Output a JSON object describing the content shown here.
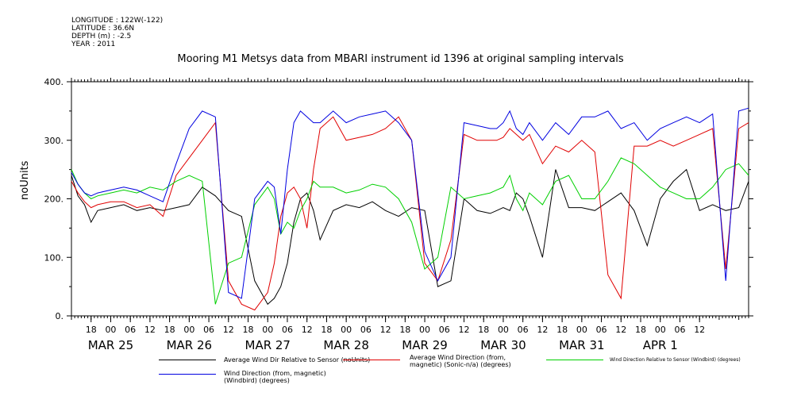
{
  "meta": {
    "longitude": "LONGITUDE : 122W(-122)",
    "latitude": "LATITUDE : 36.6N",
    "depth": "DEPTH (m) : -2.5",
    "year": "YEAR : 2011"
  },
  "chart_data": {
    "type": "line",
    "title": "Mooring M1 Metsys data from MBARI instrument id 1396 at original sampling intervals",
    "ylabel": "noUnits",
    "xlabel": "",
    "ylim": [
      0,
      400
    ],
    "xlim_hours": [
      0,
      207
    ],
    "y_ticks": [
      "0.",
      "100.",
      "200.",
      "300.",
      "400."
    ],
    "x_hour_ticks": [
      "18",
      "00",
      "06",
      "12",
      "18",
      "00",
      "06",
      "12",
      "18",
      "00",
      "06",
      "12",
      "18",
      "00",
      "06",
      "12",
      "18",
      "00",
      "06",
      "12",
      "18",
      "00",
      "06",
      "12",
      "18",
      "00",
      "06",
      "12",
      "18",
      "00",
      "06",
      "12"
    ],
    "x_date_labels": [
      "MAR 25",
      "MAR 26",
      "MAR 27",
      "MAR 28",
      "MAR 29",
      "MAR 30",
      "MAR 31",
      "APR  1"
    ],
    "grid": false,
    "series": [
      {
        "name": "Average Wind Dir Relative to Sensor (noUnits)",
        "color": "#000000",
        "x": [
          0,
          2,
          4,
          6,
          8,
          12,
          16,
          20,
          24,
          28,
          32,
          36,
          40,
          44,
          48,
          52,
          56,
          60,
          62,
          64,
          66,
          68,
          70,
          72,
          74,
          76,
          80,
          84,
          88,
          92,
          96,
          100,
          104,
          108,
          112,
          116,
          120,
          124,
          128,
          130,
          132,
          134,
          136,
          138,
          140,
          144,
          148,
          152,
          156,
          160,
          164,
          168,
          172,
          176,
          180,
          184,
          188,
          192,
          196,
          200,
          204,
          207
        ],
        "y": [
          240,
          205,
          190,
          160,
          180,
          185,
          190,
          180,
          185,
          180,
          185,
          190,
          220,
          205,
          180,
          170,
          60,
          20,
          30,
          50,
          90,
          160,
          200,
          210,
          180,
          130,
          180,
          190,
          185,
          195,
          180,
          170,
          185,
          180,
          50,
          60,
          200,
          180,
          175,
          180,
          185,
          180,
          210,
          200,
          170,
          100,
          250,
          185,
          185,
          180,
          195,
          210,
          180,
          120,
          200,
          230,
          250,
          180,
          190,
          180,
          185,
          230
        ]
      },
      {
        "name": "Average Wind Direction (from, magnetic) (Sonic-n/a) (degrees)",
        "color": "#e00000",
        "x": [
          0,
          2,
          4,
          6,
          8,
          12,
          16,
          20,
          24,
          28,
          32,
          36,
          40,
          44,
          48,
          52,
          56,
          60,
          62,
          64,
          66,
          68,
          70,
          72,
          74,
          76,
          80,
          84,
          88,
          92,
          96,
          100,
          104,
          108,
          112,
          116,
          120,
          124,
          128,
          130,
          132,
          134,
          136,
          138,
          140,
          144,
          148,
          152,
          156,
          160,
          164,
          168,
          172,
          176,
          180,
          184,
          188,
          192,
          196,
          200,
          204,
          207
        ],
        "y": [
          230,
          210,
          195,
          185,
          190,
          195,
          195,
          185,
          190,
          170,
          240,
          270,
          300,
          330,
          60,
          20,
          10,
          40,
          90,
          170,
          210,
          220,
          200,
          150,
          250,
          320,
          340,
          300,
          305,
          310,
          320,
          340,
          300,
          90,
          60,
          130,
          310,
          300,
          300,
          300,
          305,
          320,
          310,
          300,
          310,
          260,
          290,
          280,
          300,
          280,
          70,
          30,
          290,
          290,
          300,
          290,
          300,
          310,
          320,
          80,
          320,
          330
        ]
      },
      {
        "name": "Wind Direction Relative to Sensor (Windbird) (degrees)",
        "color": "#00d000",
        "x": [
          0,
          2,
          4,
          6,
          8,
          12,
          16,
          20,
          24,
          28,
          32,
          36,
          40,
          44,
          48,
          52,
          56,
          60,
          62,
          64,
          66,
          68,
          70,
          72,
          74,
          76,
          80,
          84,
          88,
          92,
          96,
          100,
          104,
          108,
          112,
          116,
          120,
          124,
          128,
          130,
          132,
          134,
          136,
          138,
          140,
          144,
          148,
          152,
          156,
          160,
          164,
          168,
          172,
          176,
          180,
          184,
          188,
          192,
          196,
          200,
          204,
          207
        ],
        "y": [
          250,
          225,
          210,
          200,
          205,
          210,
          215,
          210,
          220,
          215,
          230,
          240,
          230,
          20,
          90,
          100,
          190,
          220,
          200,
          140,
          160,
          150,
          180,
          200,
          230,
          220,
          220,
          210,
          215,
          225,
          220,
          200,
          160,
          80,
          100,
          220,
          200,
          205,
          210,
          215,
          220,
          240,
          200,
          180,
          210,
          190,
          230,
          240,
          200,
          200,
          230,
          270,
          260,
          240,
          220,
          210,
          200,
          200,
          220,
          250,
          260,
          240
        ]
      },
      {
        "name": "Wind Direction (from, magnetic) (Windbird) (degrees)",
        "color": "#0000e0",
        "x": [
          0,
          2,
          4,
          6,
          8,
          12,
          16,
          20,
          24,
          28,
          32,
          36,
          40,
          44,
          48,
          52,
          56,
          60,
          62,
          64,
          66,
          68,
          70,
          72,
          74,
          76,
          80,
          84,
          88,
          92,
          96,
          100,
          104,
          108,
          112,
          116,
          120,
          124,
          128,
          130,
          132,
          134,
          136,
          138,
          140,
          144,
          148,
          152,
          156,
          160,
          164,
          168,
          172,
          176,
          180,
          184,
          188,
          192,
          196,
          200,
          204,
          207
        ],
        "y": [
          245,
          225,
          210,
          205,
          210,
          215,
          220,
          215,
          205,
          195,
          260,
          320,
          350,
          340,
          40,
          30,
          200,
          230,
          220,
          140,
          250,
          330,
          350,
          340,
          330,
          330,
          350,
          330,
          340,
          345,
          350,
          330,
          300,
          110,
          60,
          100,
          330,
          325,
          320,
          320,
          330,
          350,
          320,
          310,
          330,
          300,
          330,
          310,
          340,
          340,
          350,
          320,
          330,
          300,
          320,
          330,
          340,
          330,
          345,
          60,
          350,
          355
        ]
      }
    ]
  }
}
